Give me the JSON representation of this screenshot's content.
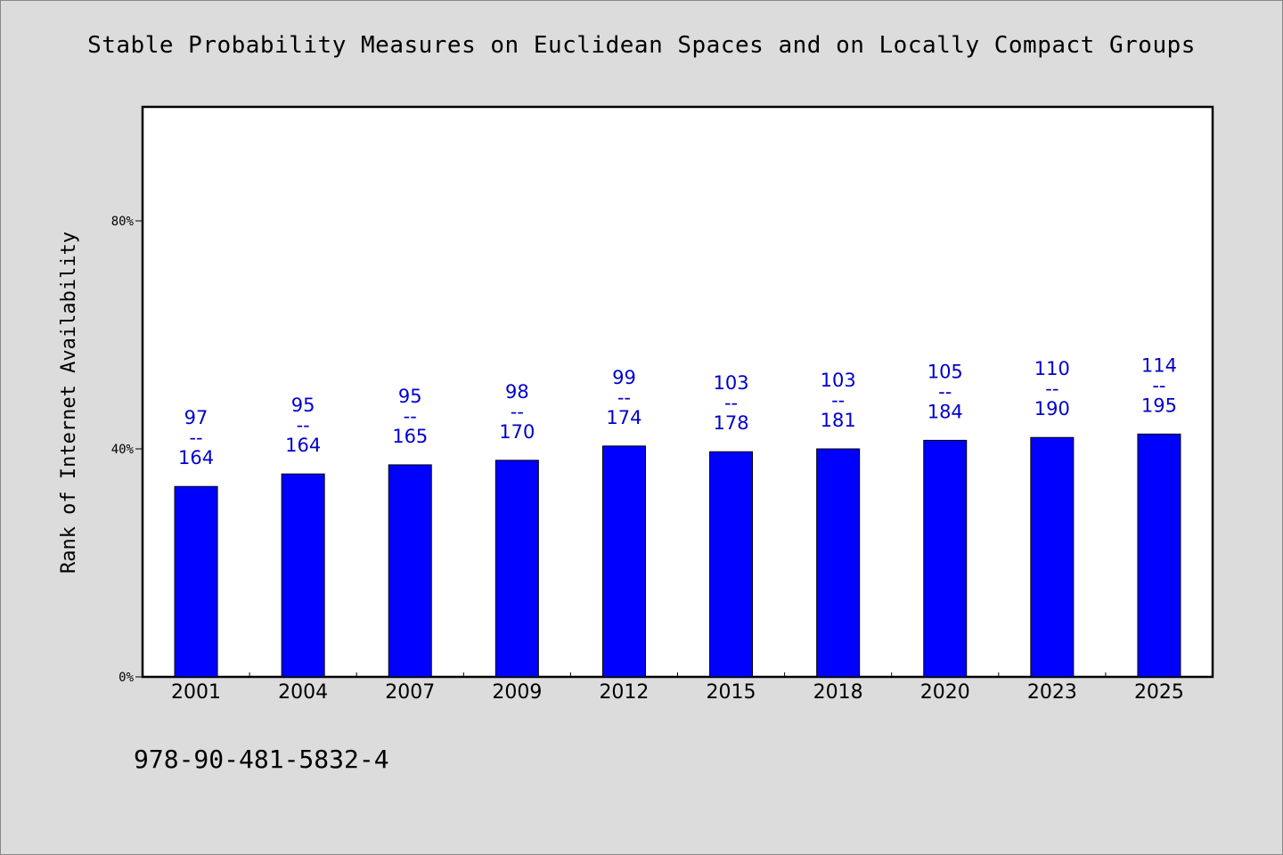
{
  "chart_data": {
    "type": "bar",
    "title": "Stable Probability Measures on Euclidean Spaces and on Locally Compact Groups",
    "ylabel": "Rank of Internet Availability",
    "xlabel": "",
    "categories": [
      "2001",
      "2004",
      "2007",
      "2009",
      "2012",
      "2015",
      "2018",
      "2020",
      "2023",
      "2025"
    ],
    "values": [
      33.4,
      35.6,
      37.2,
      38.0,
      40.5,
      39.5,
      40.0,
      41.5,
      42.0,
      42.6
    ],
    "bar_labels": [
      {
        "top": "97",
        "sep": "--",
        "bottom": "164"
      },
      {
        "top": "95",
        "sep": "--",
        "bottom": "164"
      },
      {
        "top": "95",
        "sep": "--",
        "bottom": "165"
      },
      {
        "top": "98",
        "sep": "--",
        "bottom": "170"
      },
      {
        "top": "99",
        "sep": "--",
        "bottom": "174"
      },
      {
        "top": "103",
        "sep": "--",
        "bottom": "178"
      },
      {
        "top": "103",
        "sep": "--",
        "bottom": "181"
      },
      {
        "top": "105",
        "sep": "--",
        "bottom": "184"
      },
      {
        "top": "110",
        "sep": "--",
        "bottom": "190"
      },
      {
        "top": "114",
        "sep": "--",
        "bottom": "195"
      }
    ],
    "yticks": [
      0,
      40,
      80
    ],
    "ytick_labels": [
      "0%",
      "40%",
      "80%"
    ],
    "ylim": [
      0,
      100
    ],
    "grid": false,
    "bar_color": "#0000ff",
    "label_color": "#0000cc"
  },
  "footer": {
    "code": "978-90-481-5832-4"
  }
}
